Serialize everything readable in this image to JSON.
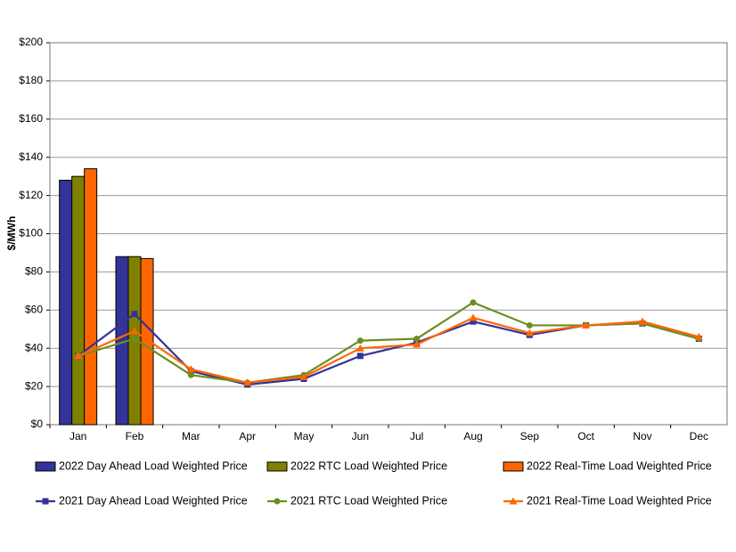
{
  "chart_data": {
    "type": "combo",
    "y_label": "$/MWh",
    "categories": [
      "Jan",
      "Feb",
      "Mar",
      "Apr",
      "May",
      "Jun",
      "Jul",
      "Aug",
      "Sep",
      "Oct",
      "Nov",
      "Dec"
    ],
    "ylim": [
      0,
      200
    ],
    "yticks": [
      {
        "value": 0,
        "label": "$0"
      },
      {
        "value": 20,
        "label": "$20"
      },
      {
        "value": 40,
        "label": "$40"
      },
      {
        "value": 60,
        "label": "$60"
      },
      {
        "value": 80,
        "label": "$80"
      },
      {
        "value": 100,
        "label": "$100"
      },
      {
        "value": 120,
        "label": "$120"
      },
      {
        "value": 140,
        "label": "$140"
      },
      {
        "value": 160,
        "label": "$160"
      },
      {
        "value": 180,
        "label": "$180"
      },
      {
        "value": 200,
        "label": "$200"
      }
    ],
    "grid": true,
    "series": [
      {
        "name": "2022 Day Ahead Load Weighted Price",
        "type": "bar",
        "color": "#333399",
        "values": [
          128,
          88,
          null,
          null,
          null,
          null,
          null,
          null,
          null,
          null,
          null,
          null
        ]
      },
      {
        "name": "2022 RTC Load Weighted Price",
        "type": "bar",
        "color": "#808000",
        "values": [
          130,
          88,
          null,
          null,
          null,
          null,
          null,
          null,
          null,
          null,
          null,
          null
        ]
      },
      {
        "name": "2022 Real-Time Load Weighted Price",
        "type": "bar",
        "color": "#ff6600",
        "values": [
          134,
          87,
          null,
          null,
          null,
          null,
          null,
          null,
          null,
          null,
          null,
          null
        ]
      },
      {
        "name": "2021 Day Ahead Load Weighted Price",
        "type": "line",
        "marker": "square",
        "color": "#333399",
        "values": [
          36,
          58,
          28,
          21,
          24,
          36,
          43,
          54,
          47,
          52,
          53,
          45
        ]
      },
      {
        "name": "2021 RTC Load Weighted Price",
        "type": "line",
        "marker": "circle",
        "color": "#6b8e23",
        "values": [
          36,
          45,
          26,
          22,
          26,
          44,
          45,
          64,
          52,
          52,
          53,
          45
        ]
      },
      {
        "name": "2021 Real-Time Load Weighted Price",
        "type": "line",
        "marker": "triangle",
        "color": "#ff6600",
        "values": [
          36,
          49,
          29,
          22,
          25,
          40,
          42,
          56,
          48,
          52,
          54,
          46
        ]
      }
    ]
  }
}
